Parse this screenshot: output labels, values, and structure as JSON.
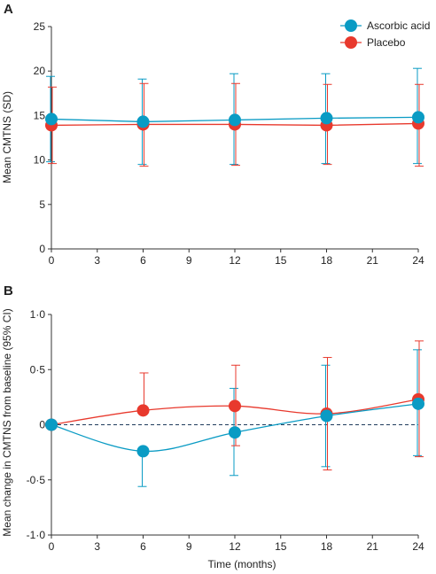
{
  "colors": {
    "ascorbic": "#0a9bc4",
    "placebo": "#e8392d",
    "axis": "#333333",
    "zero_line": "#1f3b5c"
  },
  "legend": [
    {
      "label": "Ascorbic acid",
      "color_key": "ascorbic"
    },
    {
      "label": "Placebo",
      "color_key": "placebo"
    }
  ],
  "chart_data": [
    {
      "type": "line",
      "panel": "A",
      "title": "",
      "xlabel": "",
      "ylabel": "Mean CMTNS (SD)",
      "xlim": [
        0,
        24
      ],
      "ylim": [
        0,
        25
      ],
      "xticks": [
        0,
        3,
        6,
        9,
        12,
        15,
        18,
        21,
        24
      ],
      "yticks": [
        {
          "value": 0,
          "label": "0"
        },
        {
          "value": 5,
          "label": "5"
        },
        {
          "value": 10,
          "label": "10"
        },
        {
          "value": 15,
          "label": "15"
        },
        {
          "value": 20,
          "label": "20"
        },
        {
          "value": 25,
          "label": "25"
        }
      ],
      "grid": false,
      "legend_position": "top-right",
      "x": [
        0,
        6,
        12,
        18,
        24
      ],
      "series": [
        {
          "name": "Ascorbic acid",
          "values": [
            14.6,
            14.3,
            14.5,
            14.7,
            14.8
          ],
          "err_low": [
            9.8,
            9.5,
            9.5,
            9.6,
            9.6
          ],
          "err_high": [
            19.4,
            19.1,
            19.7,
            19.7,
            20.3
          ]
        },
        {
          "name": "Placebo",
          "values": [
            13.9,
            14.0,
            14.0,
            13.9,
            14.1
          ],
          "err_low": [
            9.6,
            9.3,
            9.4,
            9.5,
            9.3
          ],
          "err_high": [
            18.2,
            18.6,
            18.6,
            18.5,
            18.5
          ]
        }
      ]
    },
    {
      "type": "line",
      "panel": "B",
      "title": "",
      "xlabel": "Time (months)",
      "ylabel": "Mean change in CMTNS from baseline (95% CI)",
      "xlim": [
        0,
        24
      ],
      "ylim": [
        -1.0,
        1.0
      ],
      "xticks": [
        0,
        3,
        6,
        9,
        12,
        15,
        18,
        21,
        24
      ],
      "yticks": [
        {
          "value": -1.0,
          "label": "-1·0"
        },
        {
          "value": -0.5,
          "label": "-0·5"
        },
        {
          "value": 0,
          "label": "0"
        },
        {
          "value": 0.5,
          "label": "0·5"
        },
        {
          "value": 1.0,
          "label": "1·0"
        }
      ],
      "grid": false,
      "reference_line": 0,
      "x": [
        0,
        6,
        12,
        18,
        24
      ],
      "series": [
        {
          "name": "Ascorbic acid",
          "values": [
            0,
            -0.24,
            -0.07,
            0.08,
            0.19
          ],
          "err_low": [
            null,
            -0.56,
            -0.46,
            -0.38,
            -0.28
          ],
          "err_high": [
            null,
            null,
            0.33,
            0.54,
            0.68
          ]
        },
        {
          "name": "Placebo",
          "values": [
            0,
            0.13,
            0.17,
            0.1,
            0.23
          ],
          "err_low": [
            null,
            null,
            -0.19,
            -0.41,
            -0.29
          ],
          "err_high": [
            null,
            0.47,
            0.54,
            0.61,
            0.76
          ]
        }
      ]
    }
  ]
}
